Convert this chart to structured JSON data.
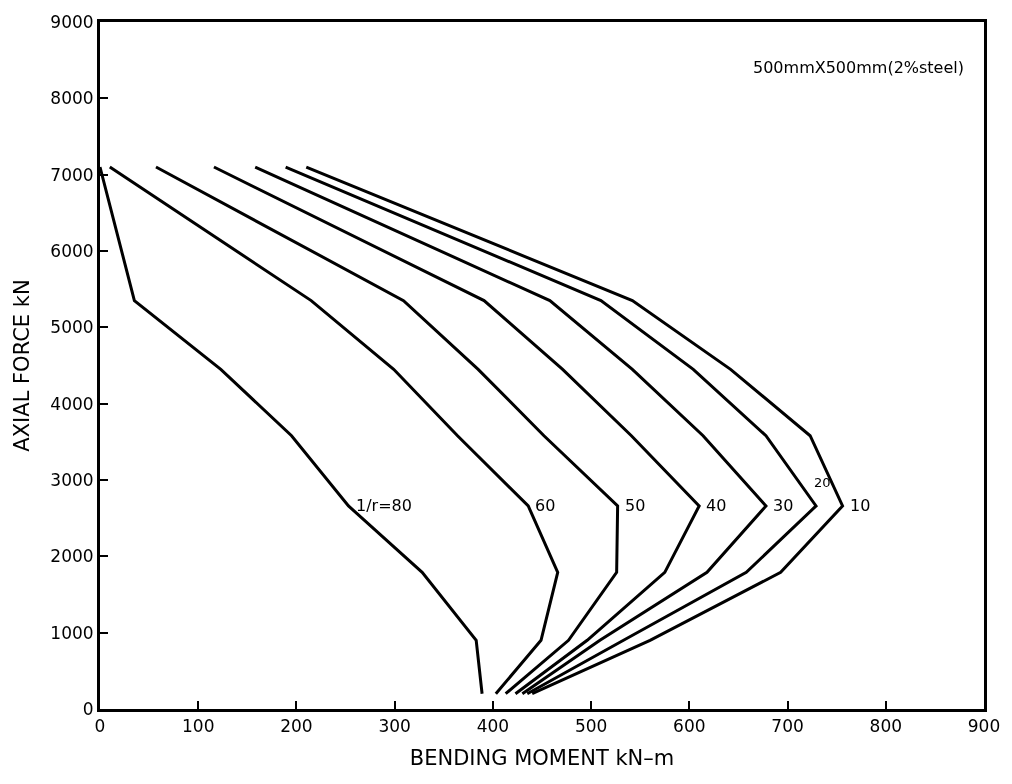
{
  "chart_data": {
    "type": "line",
    "xlabel": "BENDING MOMENT kN–m",
    "ylabel": "AXIAL FORCE kN",
    "xlim": [
      0,
      900
    ],
    "xticks": [
      0,
      100,
      200,
      300,
      400,
      500,
      600,
      700,
      800,
      900
    ],
    "ylim": [
      0,
      9000
    ],
    "yticks": [
      0,
      1000,
      2000,
      3000,
      4000,
      5000,
      6000,
      7000,
      8000,
      9000
    ],
    "marker": "none",
    "line_style": "solid",
    "series": [
      {
        "color": "#000000",
        "x": [
          0,
          35,
          123,
          195,
          253,
          328,
          383,
          389
        ],
        "values": [
          7100,
          5350,
          4450,
          3580,
          2660,
          1790,
          900,
          200
        ]
      },
      {
        "color": "#000000",
        "x": [
          10,
          215,
          299,
          364,
          436,
          466,
          449,
          403
        ],
        "values": [
          7100,
          5350,
          4450,
          3580,
          2660,
          1790,
          900,
          200
        ]
      },
      {
        "color": "#000000",
        "x": [
          57,
          309,
          385,
          452,
          527,
          526,
          477,
          413
        ],
        "values": [
          7100,
          5350,
          4450,
          3580,
          2660,
          1790,
          900,
          200
        ]
      },
      {
        "color": "#000000",
        "x": [
          116,
          391,
          471,
          541,
          610,
          575,
          496,
          423
        ],
        "values": [
          7100,
          5350,
          4450,
          3580,
          2660,
          1790,
          900,
          200
        ]
      },
      {
        "color": "#000000",
        "x": [
          158,
          458,
          542,
          614,
          678,
          618,
          509,
          430
        ],
        "values": [
          7100,
          5350,
          4450,
          3580,
          2660,
          1790,
          900,
          200
        ]
      },
      {
        "color": "#000000",
        "x": [
          189,
          510,
          604,
          678,
          729,
          658,
          533,
          435
        ],
        "values": [
          7100,
          5350,
          4450,
          3580,
          2660,
          1790,
          900,
          200
        ]
      },
      {
        "color": "#000000",
        "x": [
          210,
          542,
          642,
          723,
          756,
          693,
          560,
          440
        ],
        "values": [
          7100,
          5350,
          4450,
          3580,
          2660,
          1790,
          900,
          200
        ]
      }
    ],
    "annotations": [
      {
        "text": "1/r=80",
        "x": 253,
        "y": 2660
      },
      {
        "text": "60",
        "x": 436,
        "y": 2660
      },
      {
        "text": "50",
        "x": 527,
        "y": 2660
      },
      {
        "text": "40",
        "x": 610,
        "y": 2660
      },
      {
        "text": "30",
        "x": 678,
        "y": 2660
      },
      {
        "text": "20",
        "x": 729,
        "y": 2660
      },
      {
        "text": "10",
        "x": 756,
        "y": 2660
      },
      "500mmX500mm(2%steel)"
    ]
  }
}
